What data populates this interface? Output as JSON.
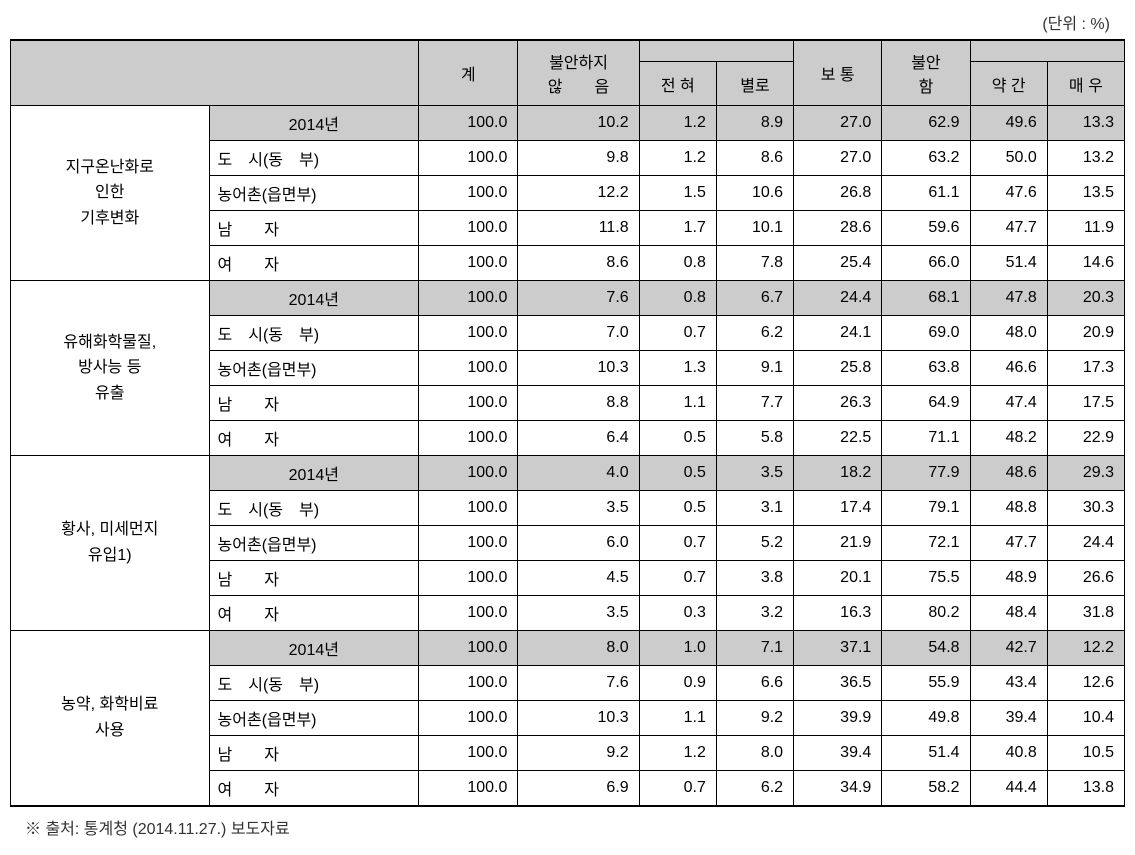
{
  "unit_label": "(단위 : %)",
  "headers": {
    "col_total": "계",
    "col_not_anxious": "불안하지<br>않　　음",
    "col_not_at_all": "전 혀",
    "col_not_much": "별로",
    "col_normal": "보 통",
    "col_anxious": "불안<br>함",
    "col_somewhat": "약 간",
    "col_very": "매 우"
  },
  "categories": [
    "지구온난화로<br>인한<br>기후변화",
    "유해화학물질,<br>방사능 등<br>유출",
    "황사, 미세먼지<br>유입1)",
    "농약, 화학비료<br>사용"
  ],
  "sub_labels": [
    "2014년",
    "도　시(동　부)",
    "농어촌(읍면부)",
    "남　　자",
    "여　　자"
  ],
  "data": {
    "cat0": {
      "r0": [
        "100.0",
        "10.2",
        "1.2",
        "8.9",
        "27.0",
        "62.9",
        "49.6",
        "13.3"
      ],
      "r1": [
        "100.0",
        "9.8",
        "1.2",
        "8.6",
        "27.0",
        "63.2",
        "50.0",
        "13.2"
      ],
      "r2": [
        "100.0",
        "12.2",
        "1.5",
        "10.6",
        "26.8",
        "61.1",
        "47.6",
        "13.5"
      ],
      "r3": [
        "100.0",
        "11.8",
        "1.7",
        "10.1",
        "28.6",
        "59.6",
        "47.7",
        "11.9"
      ],
      "r4": [
        "100.0",
        "8.6",
        "0.8",
        "7.8",
        "25.4",
        "66.0",
        "51.4",
        "14.6"
      ]
    },
    "cat1": {
      "r0": [
        "100.0",
        "7.6",
        "0.8",
        "6.7",
        "24.4",
        "68.1",
        "47.8",
        "20.3"
      ],
      "r1": [
        "100.0",
        "7.0",
        "0.7",
        "6.2",
        "24.1",
        "69.0",
        "48.0",
        "20.9"
      ],
      "r2": [
        "100.0",
        "10.3",
        "1.3",
        "9.1",
        "25.8",
        "63.8",
        "46.6",
        "17.3"
      ],
      "r3": [
        "100.0",
        "8.8",
        "1.1",
        "7.7",
        "26.3",
        "64.9",
        "47.4",
        "17.5"
      ],
      "r4": [
        "100.0",
        "6.4",
        "0.5",
        "5.8",
        "22.5",
        "71.1",
        "48.2",
        "22.9"
      ]
    },
    "cat2": {
      "r0": [
        "100.0",
        "4.0",
        "0.5",
        "3.5",
        "18.2",
        "77.9",
        "48.6",
        "29.3"
      ],
      "r1": [
        "100.0",
        "3.5",
        "0.5",
        "3.1",
        "17.4",
        "79.1",
        "48.8",
        "30.3"
      ],
      "r2": [
        "100.0",
        "6.0",
        "0.7",
        "5.2",
        "21.9",
        "72.1",
        "47.7",
        "24.4"
      ],
      "r3": [
        "100.0",
        "4.5",
        "0.7",
        "3.8",
        "20.1",
        "75.5",
        "48.9",
        "26.6"
      ],
      "r4": [
        "100.0",
        "3.5",
        "0.3",
        "3.2",
        "16.3",
        "80.2",
        "48.4",
        "31.8"
      ]
    },
    "cat3": {
      "r0": [
        "100.0",
        "8.0",
        "1.0",
        "7.1",
        "37.1",
        "54.8",
        "42.7",
        "12.2"
      ],
      "r1": [
        "100.0",
        "7.6",
        "0.9",
        "6.6",
        "36.5",
        "55.9",
        "43.4",
        "12.6"
      ],
      "r2": [
        "100.0",
        "10.3",
        "1.1",
        "9.2",
        "39.9",
        "49.8",
        "39.4",
        "10.4"
      ],
      "r3": [
        "100.0",
        "9.2",
        "1.2",
        "8.0",
        "39.4",
        "51.4",
        "40.8",
        "10.5"
      ],
      "r4": [
        "100.0",
        "6.9",
        "0.7",
        "6.2",
        "34.9",
        "58.2",
        "44.4",
        "13.8"
      ]
    }
  },
  "source_note": "※ 출처: 통계청 (2014.11.27.) 보도자료",
  "column_widths": [
    "180px",
    "190px",
    "90px",
    "110px",
    "70px",
    "70px",
    "80px",
    "80px",
    "70px",
    "70px"
  ]
}
